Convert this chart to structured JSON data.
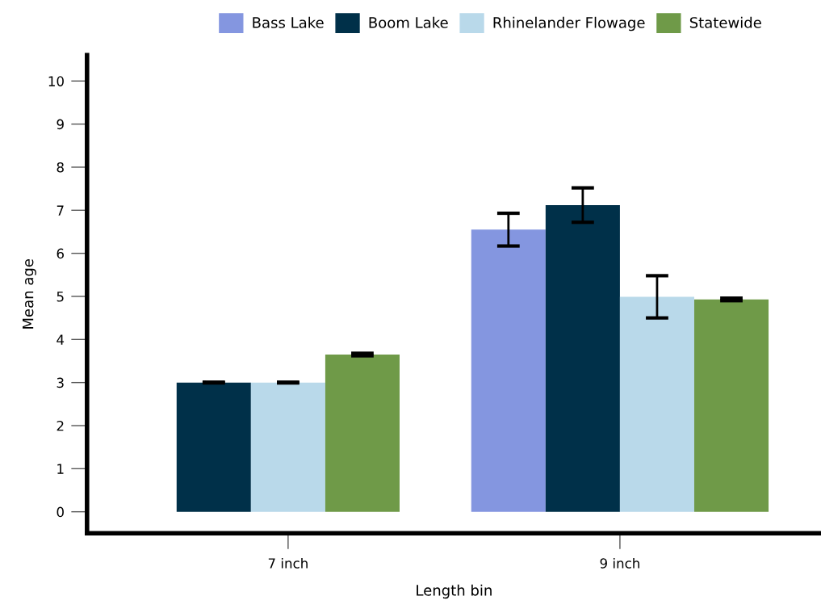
{
  "chart_data": {
    "type": "bar",
    "xlabel": "Length bin",
    "ylabel": "Mean age",
    "categories": [
      "7 inch",
      "9 inch"
    ],
    "series": [
      {
        "name": "Bass Lake",
        "color": "#8496e0",
        "values": [
          null,
          6.55
        ],
        "errors": [
          null,
          0.38
        ]
      },
      {
        "name": "Boom Lake",
        "color": "#003049",
        "values": [
          3.0,
          7.12
        ],
        "errors": [
          0.01,
          0.4
        ]
      },
      {
        "name": "Rhinelander Flowage",
        "color": "#b9d9ea",
        "values": [
          3.0,
          4.99
        ],
        "errors": [
          0.01,
          0.49
        ]
      },
      {
        "name": "Statewide",
        "color": "#6f9a48",
        "values": [
          3.65,
          4.93
        ],
        "errors": [
          0.03,
          0.03
        ]
      }
    ],
    "ylim": [
      -0.5,
      10.6
    ],
    "yticks": [
      0,
      1,
      2,
      3,
      4,
      5,
      6,
      7,
      8,
      9,
      10
    ],
    "grid": false,
    "legend": "top"
  }
}
